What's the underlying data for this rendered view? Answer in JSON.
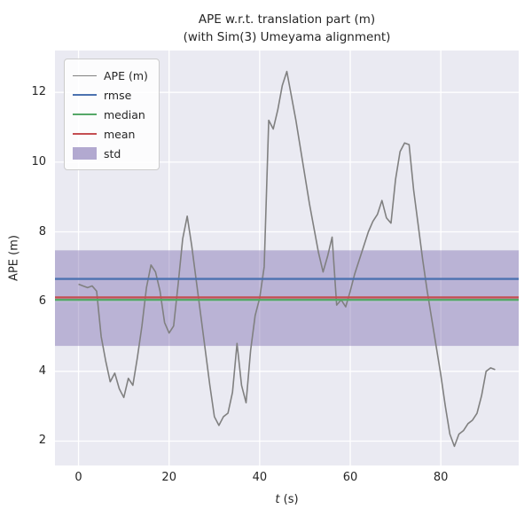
{
  "figure": {
    "title_line1": "APE w.r.t. translation part (m)",
    "title_line2": "(with Sim(3) Umeyama alignment)",
    "ylabel": "APE (m)",
    "xlabel_var": "t",
    "xlabel_rest": " (s)"
  },
  "chart_data": {
    "type": "line",
    "title": "APE w.r.t. translation part (m) (with Sim(3) Umeyama alignment)",
    "xlabel": "t (s)",
    "ylabel": "APE (m)",
    "xlim": [
      -5.2,
      97.2
    ],
    "ylim": [
      1.3,
      13.2
    ],
    "x_ticks": [
      0,
      20,
      40,
      60,
      80
    ],
    "y_ticks": [
      2,
      4,
      6,
      8,
      10,
      12
    ],
    "grid": true,
    "plot_bg": "#EAEAF2",
    "grid_color": "#FFFFFF",
    "legend_position": "upper left",
    "t": {
      "start": 0,
      "step": 1
    },
    "series": [
      {
        "name": "APE (m)",
        "kind": "line",
        "color": "#808080",
        "linewidth": 1.6,
        "values": [
          6.5,
          6.45,
          6.4,
          6.45,
          6.3,
          5.0,
          4.3,
          3.7,
          3.95,
          3.5,
          3.25,
          3.8,
          3.6,
          4.4,
          5.3,
          6.4,
          7.05,
          6.85,
          6.3,
          5.4,
          5.1,
          5.3,
          6.5,
          7.8,
          8.45,
          7.6,
          6.6,
          5.6,
          4.6,
          3.6,
          2.7,
          2.45,
          2.7,
          2.8,
          3.4,
          4.8,
          3.6,
          3.1,
          4.6,
          5.6,
          6.1,
          7.0,
          11.2,
          10.95,
          11.5,
          12.2,
          12.6,
          11.9,
          11.2,
          10.4,
          9.6,
          8.8,
          8.1,
          7.4,
          6.85,
          7.3,
          7.85,
          5.9,
          6.05,
          5.85,
          6.3,
          6.8,
          7.2,
          7.6,
          8.0,
          8.3,
          8.5,
          8.9,
          8.4,
          8.25,
          9.5,
          10.3,
          10.55,
          10.5,
          9.2,
          8.2,
          7.2,
          6.3,
          5.5,
          4.7,
          3.9,
          3.0,
          2.2,
          1.85,
          2.2,
          2.3,
          2.5,
          2.6,
          2.8,
          3.3,
          4.0,
          4.1,
          4.05
        ]
      },
      {
        "name": "rmse",
        "kind": "hline",
        "color": "#4C72B0",
        "linewidth": 2.4,
        "value": 6.65
      },
      {
        "name": "median",
        "kind": "hline",
        "color": "#55A868",
        "linewidth": 2.4,
        "value": 6.05
      },
      {
        "name": "mean",
        "kind": "hline",
        "color": "#C44E52",
        "linewidth": 2.4,
        "value": 6.12
      },
      {
        "name": "std",
        "kind": "band",
        "color": "#8172B2",
        "opacity": 0.45,
        "min": 4.73,
        "max": 7.47
      }
    ]
  }
}
